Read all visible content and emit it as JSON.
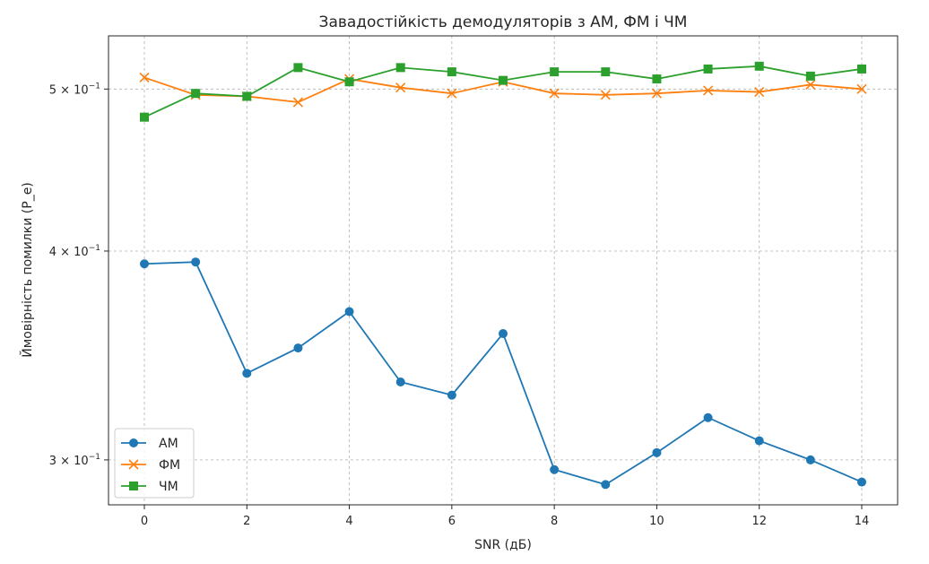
{
  "chart_data": {
    "type": "line",
    "title": "Завадостійкість демодуляторів з АМ, ФМ і ЧМ",
    "xlabel": "SNR (дБ)",
    "ylabel": "Ймовірність помилки (P_e)",
    "yscale": "log",
    "xlim": [
      -0.7,
      14.7
    ],
    "ylim": [
      0.282,
      0.538
    ],
    "xticks": [
      0,
      2,
      4,
      6,
      8,
      10,
      12,
      14
    ],
    "xtick_labels": [
      "0",
      "2",
      "4",
      "6",
      "8",
      "10",
      "12",
      "14"
    ],
    "yticks": [
      0.3,
      0.4,
      0.5
    ],
    "ytick_labels": [
      {
        "mantissa": "3",
        "exp": "−1"
      },
      {
        "mantissa": "4",
        "exp": "−1"
      },
      {
        "mantissa": "5",
        "exp": "−1"
      }
    ],
    "grid": true,
    "legend_position": "lower-left",
    "x": [
      0,
      1,
      2,
      3,
      4,
      5,
      6,
      7,
      8,
      9,
      10,
      11,
      12,
      13,
      14
    ],
    "series": [
      {
        "name": "АМ",
        "color": "#1f77b4",
        "marker": "circle",
        "values": [
          0.393,
          0.394,
          0.338,
          0.35,
          0.368,
          0.334,
          0.328,
          0.357,
          0.296,
          0.29,
          0.303,
          0.318,
          0.308,
          0.3,
          0.291
        ]
      },
      {
        "name": "ФМ",
        "color": "#ff7f0e",
        "marker": "x",
        "values": [
          0.508,
          0.496,
          0.495,
          0.491,
          0.507,
          0.501,
          0.497,
          0.505,
          0.497,
          0.496,
          0.497,
          0.499,
          0.498,
          0.503,
          0.5
        ]
      },
      {
        "name": "ЧМ",
        "color": "#2ca02c",
        "marker": "square",
        "values": [
          0.481,
          0.497,
          0.495,
          0.515,
          0.505,
          0.515,
          0.512,
          0.506,
          0.512,
          0.512,
          0.507,
          0.514,
          0.516,
          0.509,
          0.514
        ]
      }
    ]
  }
}
